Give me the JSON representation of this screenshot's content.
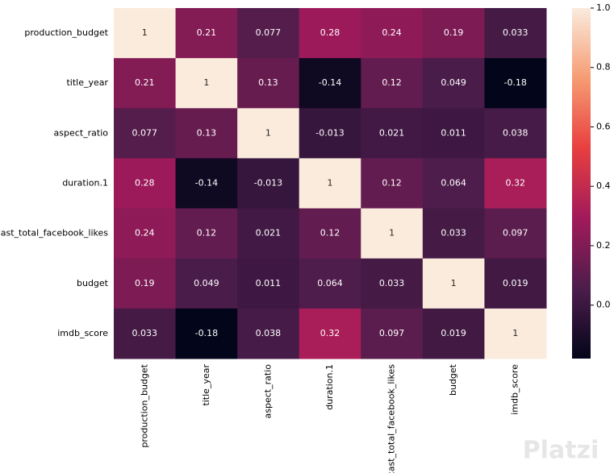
{
  "chart_data": {
    "type": "heatmap",
    "categories": [
      "production_budget",
      "title_year",
      "aspect_ratio",
      "duration.1",
      "cast_total_facebook_likes",
      "budget",
      "imdb_score"
    ],
    "row_categories": [
      "production_budget",
      "title_year",
      "aspect_ratio",
      "duration.1",
      "cast_total_facebook_likes",
      "budget",
      "imdb_score"
    ],
    "values": [
      [
        1,
        0.21,
        0.077,
        0.28,
        0.24,
        0.19,
        0.033
      ],
      [
        0.21,
        1,
        0.13,
        -0.14,
        0.12,
        0.049,
        -0.18
      ],
      [
        0.077,
        0.13,
        1,
        -0.013,
        0.021,
        0.011,
        0.038
      ],
      [
        0.28,
        -0.14,
        -0.013,
        1,
        0.12,
        0.064,
        0.32
      ],
      [
        0.24,
        0.12,
        0.021,
        0.12,
        1,
        0.033,
        0.097
      ],
      [
        0.19,
        0.049,
        0.011,
        0.064,
        0.033,
        1,
        0.019
      ],
      [
        0.033,
        -0.18,
        0.038,
        0.32,
        0.097,
        0.019,
        1
      ]
    ],
    "colormap": "rocket",
    "clim": [
      -0.18,
      1
    ],
    "cticks": [
      {
        "value": 0,
        "label": "0.0"
      },
      0.2,
      0.4,
      0.6,
      0.8,
      {
        "value": 1,
        "label": "1.0"
      }
    ]
  },
  "watermark": "Platzi"
}
